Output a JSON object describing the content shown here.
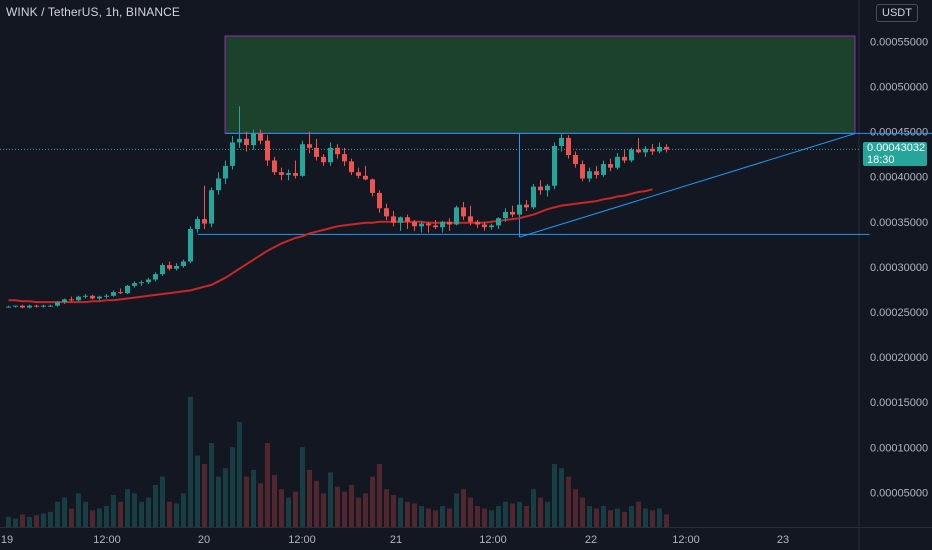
{
  "header": {
    "title": "WINK / TetherUS, 1h, BINANCE",
    "currency": "USDT"
  },
  "last_price": {
    "value": "0.00043032",
    "countdown": "18:30"
  },
  "colors": {
    "background": "#131722",
    "up": "#26a69a",
    "down": "#ef5350",
    "ma_line": "#c62828",
    "trendline": "#2196f3",
    "target_zone_fill": "#1e4a2e",
    "target_zone_border": "#9c27b0"
  },
  "chart_data": {
    "type": "candlestick",
    "symbol": "WINK / TetherUS",
    "interval": "1h",
    "exchange": "BINANCE",
    "ylim": [
      0.0,
      0.00058
    ],
    "y_ticks": [
      "0.00055000",
      "0.00050000",
      "0.00045000",
      "0.00040000",
      "0.00035000",
      "0.00030000",
      "0.00025000",
      "0.00020000",
      "0.00015000",
      "0.00010000",
      "0.00005000"
    ],
    "x_ticks": [
      "19",
      "12:00",
      "20",
      "12:00",
      "21",
      "12:00",
      "22",
      "12:00",
      "23"
    ],
    "candles": [
      [
        0.000256,
        0.000257,
        0.000255,
        0.000256
      ],
      [
        0.000256,
        0.000257,
        0.000255,
        0.000257
      ],
      [
        0.000257,
        0.000258,
        0.000254,
        0.000255
      ],
      [
        0.000255,
        0.000258,
        0.000254,
        0.000257
      ],
      [
        0.000257,
        0.000258,
        0.000255,
        0.000256
      ],
      [
        0.000256,
        0.000258,
        0.000255,
        0.000257
      ],
      [
        0.000257,
        0.000258,
        0.000256,
        0.000257
      ],
      [
        0.000257,
        0.000262,
        0.000256,
        0.000261
      ],
      [
        0.000261,
        0.000265,
        0.000259,
        0.000264
      ],
      [
        0.000264,
        0.000267,
        0.000262,
        0.000263
      ],
      [
        0.000263,
        0.000268,
        0.000262,
        0.000267
      ],
      [
        0.000267,
        0.00027,
        0.000265,
        0.000268
      ],
      [
        0.000268,
        0.000269,
        0.000264,
        0.000265
      ],
      [
        0.000265,
        0.000268,
        0.000263,
        0.000267
      ],
      [
        0.000267,
        0.00027,
        0.000265,
        0.000268
      ],
      [
        0.000268,
        0.000274,
        0.000267,
        0.000272
      ],
      [
        0.000272,
        0.000276,
        0.00027,
        0.000271
      ],
      [
        0.000271,
        0.00028,
        0.00027,
        0.000279
      ],
      [
        0.000279,
        0.000284,
        0.000277,
        0.000282
      ],
      [
        0.000282,
        0.000285,
        0.000279,
        0.000283
      ],
      [
        0.000283,
        0.000288,
        0.000281,
        0.000286
      ],
      [
        0.000286,
        0.000294,
        0.000284,
        0.000292
      ],
      [
        0.000292,
        0.000304,
        0.00029,
        0.000302
      ],
      [
        0.000302,
        0.000306,
        0.000296,
        0.000298
      ],
      [
        0.000298,
        0.000304,
        0.000296,
        0.000301
      ],
      [
        0.000301,
        0.000308,
        0.000299,
        0.000306
      ],
      [
        0.000306,
        0.000345,
        0.000304,
        0.000342
      ],
      [
        0.000342,
        0.000356,
        0.000338,
        0.000353
      ],
      [
        0.000353,
        0.00039,
        0.000342,
        0.000348
      ],
      [
        0.000348,
        0.000388,
        0.000344,
        0.000385
      ],
      [
        0.000385,
        0.000405,
        0.00038,
        0.000398
      ],
      [
        0.000398,
        0.000418,
        0.000392,
        0.000412
      ],
      [
        0.000412,
        0.000445,
        0.000408,
        0.000438
      ],
      [
        0.000438,
        0.000478,
        0.000432,
        0.000442
      ],
      [
        0.000442,
        0.00045,
        0.000428,
        0.000435
      ],
      [
        0.000435,
        0.000452,
        0.00043,
        0.000448
      ],
      [
        0.000448,
        0.000452,
        0.000436,
        0.00044
      ],
      [
        0.00044,
        0.000446,
        0.000412,
        0.000418
      ],
      [
        0.000418,
        0.000422,
        0.000402,
        0.000405
      ],
      [
        0.000405,
        0.00041,
        0.000396,
        0.000402
      ],
      [
        0.000402,
        0.000408,
        0.000396,
        0.000404
      ],
      [
        0.000404,
        0.000418,
        0.000398,
        0.000401
      ],
      [
        0.000401,
        0.00044,
        0.0004,
        0.000436
      ],
      [
        0.000436,
        0.00045,
        0.000426,
        0.000432
      ],
      [
        0.000432,
        0.000442,
        0.000418,
        0.000422
      ],
      [
        0.000422,
        0.000425,
        0.000412,
        0.000416
      ],
      [
        0.000416,
        0.000438,
        0.000412,
        0.000432
      ],
      [
        0.000432,
        0.000436,
        0.00042,
        0.000425
      ],
      [
        0.000425,
        0.000432,
        0.000412,
        0.000417
      ],
      [
        0.000417,
        0.00042,
        0.000402,
        0.000405
      ],
      [
        0.000405,
        0.00041,
        0.000398,
        0.000401
      ],
      [
        0.000401,
        0.000412,
        0.000396,
        0.000397
      ],
      [
        0.000397,
        0.000398,
        0.000378,
        0.000382
      ],
      [
        0.000382,
        0.000385,
        0.00036,
        0.000365
      ],
      [
        0.000365,
        0.00037,
        0.000352,
        0.000356
      ],
      [
        0.000356,
        0.000362,
        0.000345,
        0.000349
      ],
      [
        0.000349,
        0.000356,
        0.00034,
        0.000355
      ],
      [
        0.000355,
        0.000358,
        0.000342,
        0.00035
      ],
      [
        0.00035,
        0.000352,
        0.00034,
        0.000345
      ],
      [
        0.000345,
        0.00035,
        0.000338,
        0.000348
      ],
      [
        0.000348,
        0.00035,
        0.000338,
        0.000346
      ],
      [
        0.000346,
        0.000352,
        0.000342,
        0.000344
      ],
      [
        0.000344,
        0.000351,
        0.000338,
        0.00035
      ],
      [
        0.00035,
        0.000354,
        0.00034,
        0.000347
      ],
      [
        0.000347,
        0.000368,
        0.000346,
        0.000366
      ],
      [
        0.000366,
        0.000372,
        0.000352,
        0.000356
      ],
      [
        0.000356,
        0.000368,
        0.000346,
        0.00035
      ],
      [
        0.00035,
        0.000352,
        0.000343,
        0.000347
      ],
      [
        0.000347,
        0.00035,
        0.00034,
        0.000344
      ],
      [
        0.000344,
        0.000348,
        0.000341,
        0.000346
      ],
      [
        0.000346,
        0.000355,
        0.000342,
        0.000354
      ],
      [
        0.000354,
        0.000365,
        0.00035,
        0.000361
      ],
      [
        0.000361,
        0.000368,
        0.000355,
        0.000358
      ],
      [
        0.000358,
        0.000372,
        0.000356,
        0.000369
      ],
      [
        0.000369,
        0.000374,
        0.000362,
        0.000366
      ],
      [
        0.000366,
        0.000392,
        0.000364,
        0.000389
      ],
      [
        0.000389,
        0.000396,
        0.00038,
        0.000385
      ],
      [
        0.000385,
        0.000392,
        0.000378,
        0.00039
      ],
      [
        0.00039,
        0.000438,
        0.000386,
        0.000434
      ],
      [
        0.000434,
        0.000447,
        0.000428,
        0.000443
      ],
      [
        0.000443,
        0.000446,
        0.00042,
        0.000424
      ],
      [
        0.000424,
        0.000428,
        0.00041,
        0.000414
      ],
      [
        0.000414,
        0.000418,
        0.000395,
        0.000398
      ],
      [
        0.000398,
        0.00041,
        0.000394,
        0.000406
      ],
      [
        0.000406,
        0.000412,
        0.000398,
        0.000402
      ],
      [
        0.000402,
        0.000418,
        0.0004,
        0.000414
      ],
      [
        0.000414,
        0.00042,
        0.000406,
        0.00041
      ],
      [
        0.00041,
        0.000426,
        0.000408,
        0.000422
      ],
      [
        0.000422,
        0.00043,
        0.000415,
        0.000418
      ],
      [
        0.000418,
        0.000432,
        0.000416,
        0.00043
      ],
      [
        0.00043,
        0.000443,
        0.000426,
        0.000427
      ],
      [
        0.000427,
        0.000434,
        0.000422,
        0.000431
      ],
      [
        0.000431,
        0.000436,
        0.000424,
        0.000428
      ],
      [
        0.000428,
        0.000438,
        0.000426,
        0.000433
      ],
      [
        0.000433,
        0.000436,
        0.000427,
        0.00043
      ]
    ],
    "volume": [
      1.2e-06,
      1e-06,
      1.5e-06,
      1.2e-06,
      1.4e-06,
      1.6e-06,
      1.8e-06,
      3e-06,
      3.5e-06,
      2.2e-06,
      4e-06,
      3e-06,
      2e-06,
      2.2e-06,
      2.5e-06,
      3.8e-06,
      3e-06,
      4.5e-06,
      4e-06,
      3e-06,
      3.5e-06,
      5e-06,
      6e-06,
      3e-06,
      2.8e-06,
      4e-06,
      1.55e-05,
      8.5e-06,
      7.5e-06,
      1e-05,
      6e-06,
      7e-06,
      9.5e-06,
      1.25e-05,
      6e-06,
      6.8e-06,
      5.2e-06,
      1e-05,
      6.2e-06,
      4.5e-06,
      3.5e-06,
      4.2e-06,
      9.5e-06,
      6.8e-06,
      5.5e-06,
      4e-06,
      6.5e-06,
      4.8e-06,
      4.2e-06,
      5e-06,
      3.5e-06,
      4e-06,
      6e-06,
      7.5e-06,
      4.5e-06,
      3.8e-06,
      3.5e-06,
      3e-06,
      2.8e-06,
      2.5e-06,
      2.2e-06,
      2e-06,
      2.5e-06,
      2.2e-06,
      4e-06,
      4.5e-06,
      3.5e-06,
      2.5e-06,
      2.2e-06,
      2e-06,
      2.5e-06,
      3e-06,
      2.8e-06,
      3e-06,
      2.5e-06,
      4.5e-06,
      3.5e-06,
      3e-06,
      7.5e-06,
      7e-06,
      6e-06,
      4.5e-06,
      3.5e-06,
      2.5e-06,
      2.2e-06,
      2.5e-06,
      2e-06,
      2.2e-06,
      1.8e-06,
      2.5e-06,
      3e-06,
      2.2e-06,
      2e-06,
      2.2e-06,
      1.5e-06
    ],
    "moving_average": {
      "start_index": 0,
      "values": [
        0.000263,
        0.000263,
        0.000262,
        0.000262,
        0.000261,
        0.000261,
        0.000261,
        0.000261,
        0.000261,
        0.000261,
        0.000261,
        0.000261,
        0.000262,
        0.000262,
        0.000263,
        0.000263,
        0.000264,
        0.000265,
        0.000266,
        0.000267,
        0.000268,
        0.000269,
        0.00027,
        0.000271,
        0.000272,
        0.000273,
        0.000274,
        0.000276,
        0.000278,
        0.00028,
        0.000284,
        0.000288,
        0.000293,
        0.000298,
        0.000303,
        0.000308,
        0.000313,
        0.000318,
        0.000322,
        0.000326,
        0.000329,
        0.000332,
        0.000334,
        0.000337,
        0.000339,
        0.000341,
        0.000343,
        0.000345,
        0.000346,
        0.000347,
        0.000348,
        0.000349,
        0.000349,
        0.00035,
        0.00035,
        0.00035,
        0.00035,
        0.00035,
        0.00035,
        0.00035,
        0.000349,
        0.000349,
        0.000349,
        0.000349,
        0.000349,
        0.000349,
        0.000349,
        0.000349,
        0.000349,
        0.00035,
        0.000351,
        0.000352,
        0.000353,
        0.000354,
        0.000356,
        0.000358,
        0.000361,
        0.000364,
        0.000366,
        0.000368,
        0.000369,
        0.00037,
        0.000371,
        0.000372,
        0.000373,
        0.000375,
        0.000376,
        0.000378,
        0.000379,
        0.000381,
        0.000383,
        0.000384,
        0.000386
      ]
    },
    "annotations": {
      "target_zone": {
        "price_from": 0.000448,
        "price_to": 0.000556,
        "candle_from": 31,
        "candle_to": 121
      },
      "support_line": {
        "price": 0.000336,
        "candle_from": 27,
        "candle_to": 123
      },
      "resistance_line": {
        "price": 0.000448,
        "candle_from": 31,
        "candle_to": 133
      },
      "rising_trendline": {
        "from": [
          0.000333,
          73
        ],
        "to": [
          0.000448,
          121
        ]
      },
      "vertical_marker": {
        "candle": 73,
        "price_from": 0.000333,
        "price_to": 0.000448
      },
      "last_price_line": {
        "price": 0.00043032
      }
    }
  }
}
